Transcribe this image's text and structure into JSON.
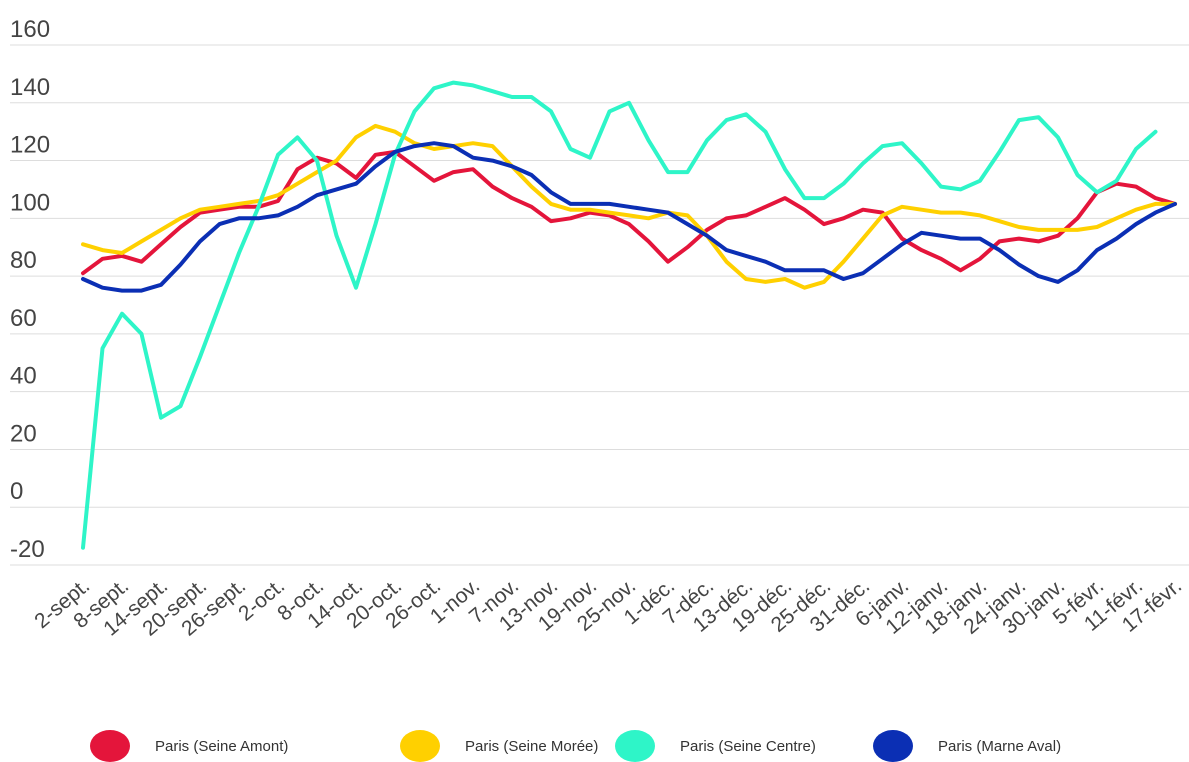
{
  "chart_data": {
    "type": "line",
    "categories": [
      "2-sept.",
      null,
      "8-sept.",
      null,
      "14-sept.",
      null,
      "20-sept.",
      null,
      "26-sept.",
      null,
      "2-oct.",
      null,
      "8-oct.",
      null,
      "14-oct.",
      null,
      "20-oct.",
      null,
      "26-oct.",
      null,
      "1-nov.",
      null,
      "7-nov.",
      null,
      "13-nov.",
      null,
      "19-nov.",
      null,
      "25-nov.",
      null,
      "1-déc.",
      null,
      "7-déc.",
      null,
      "13-déc.",
      null,
      "19-déc.",
      null,
      "25-déc.",
      null,
      "31-déc.",
      null,
      "6-janv.",
      null,
      "12-janv.",
      null,
      "18-janv.",
      null,
      "24-janv.",
      null,
      "30-janv.",
      null,
      "5-févr.",
      null,
      "11-févr.",
      null,
      "17-févr."
    ],
    "series": [
      {
        "name": "Paris (Seine Amont)",
        "color": "#e4153b",
        "values": [
          81,
          86,
          87,
          85,
          91,
          97,
          102,
          103,
          104,
          104,
          106,
          117,
          121,
          119,
          114,
          122,
          123,
          118,
          113,
          116,
          117,
          111,
          107,
          104,
          99,
          100,
          102,
          101,
          98,
          92,
          85,
          90,
          96,
          100,
          101,
          104,
          107,
          103,
          98,
          100,
          103,
          102,
          93,
          89,
          86,
          82,
          86,
          92,
          93,
          92,
          94,
          100,
          109,
          112,
          111,
          107,
          105
        ]
      },
      {
        "name": "Paris (Seine Morée)",
        "color": "#ffd000",
        "values": [
          91,
          89,
          88,
          92,
          96,
          100,
          103,
          104,
          105,
          106,
          108,
          112,
          116,
          120,
          128,
          132,
          130,
          126,
          124,
          125,
          126,
          125,
          118,
          111,
          105,
          103,
          103,
          102,
          101,
          100,
          102,
          101,
          94,
          85,
          79,
          78,
          79,
          76,
          78,
          85,
          93,
          101,
          104,
          103,
          102,
          102,
          101,
          99,
          97,
          96,
          96,
          96,
          97,
          100,
          103,
          105,
          105
        ]
      },
      {
        "name": "Paris (Seine Centre)",
        "color": "#2ef5c8",
        "values": [
          -14,
          55,
          67,
          60,
          31,
          35,
          52,
          70,
          88,
          104,
          122,
          128,
          120,
          94,
          76,
          98,
          122,
          137,
          145,
          147,
          146,
          144,
          142,
          142,
          137,
          124,
          121,
          137,
          140,
          127,
          116,
          116,
          127,
          134,
          136,
          130,
          117,
          107,
          107,
          112,
          119,
          125,
          126,
          119,
          111,
          110,
          113,
          123,
          134,
          135,
          128,
          115,
          109,
          113,
          124,
          130,
          null
        ]
      },
      {
        "name": "Paris (Marne Aval)",
        "color": "#0b2fb4",
        "values": [
          79,
          76,
          75,
          75,
          77,
          84,
          92,
          98,
          100,
          100,
          101,
          104,
          108,
          110,
          112,
          118,
          123,
          125,
          126,
          125,
          121,
          120,
          118,
          115,
          109,
          105,
          105,
          105,
          104,
          103,
          102,
          98,
          94,
          89,
          87,
          85,
          82,
          82,
          82,
          79,
          81,
          86,
          91,
          95,
          94,
          93,
          93,
          89,
          84,
          80,
          78,
          82,
          89,
          93,
          98,
          102,
          105
        ]
      }
    ],
    "ylim": [
      -20,
      160
    ],
    "yticks": [
      -20,
      0,
      20,
      40,
      60,
      80,
      100,
      120,
      140,
      160
    ],
    "grid": true,
    "legend": "bottom"
  }
}
